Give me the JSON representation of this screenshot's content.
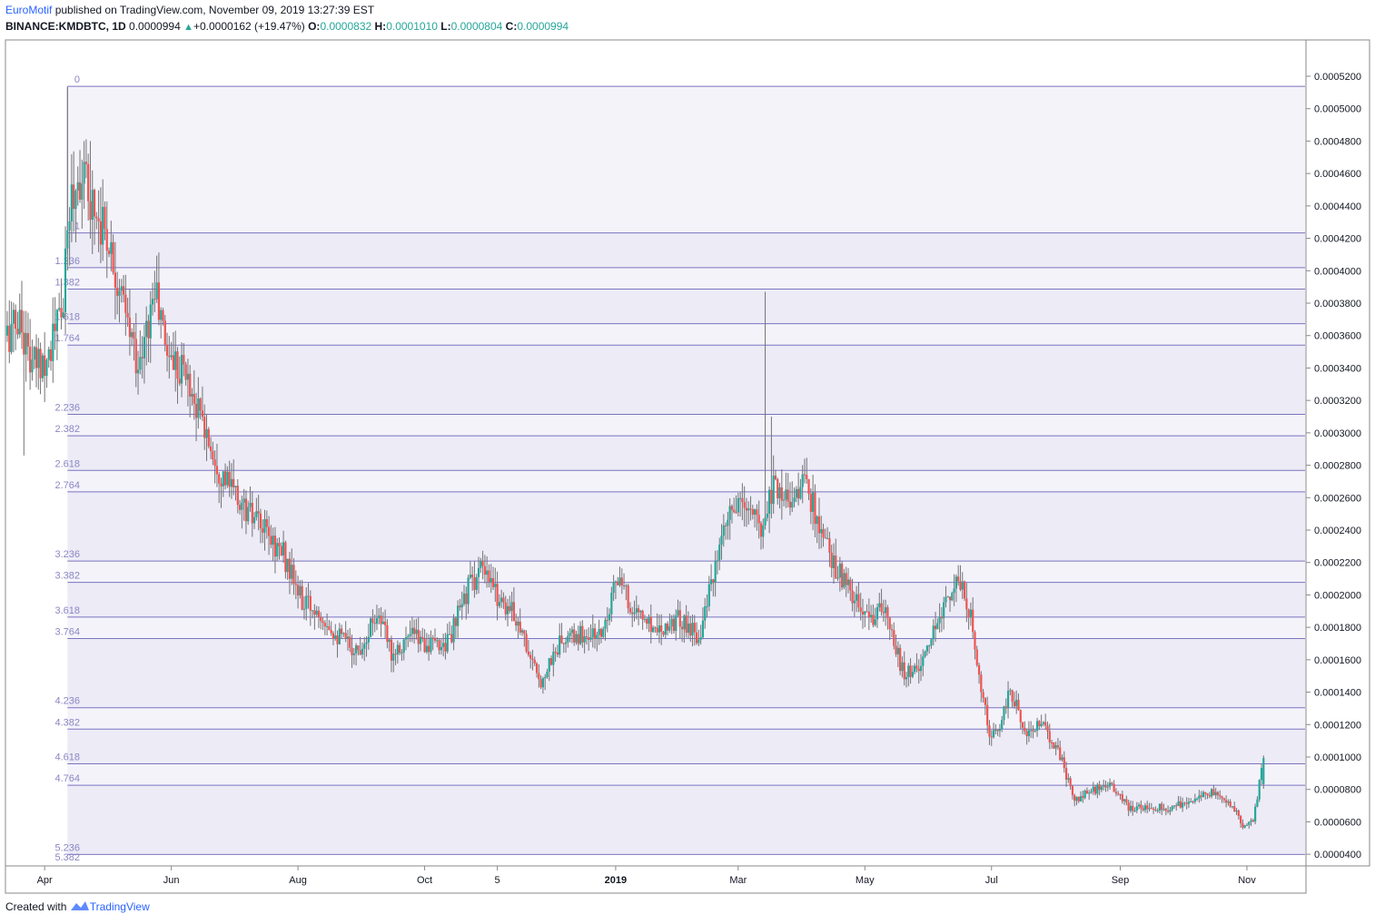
{
  "header": {
    "author": "EuroMotif",
    "published_text": "published on TradingView.com, November 09, 2019 13:27:39 EST",
    "symbol": "BINANCE:KMDBTC, 1D",
    "last": "0.0000994",
    "change": "+0.0000162 (+19.47%)",
    "open_label": "O:",
    "open": "0.0000832",
    "high_label": "H:",
    "high": "0.0001010",
    "low_label": "L:",
    "low": "0.0000804",
    "close_label": "C:",
    "close": "0.0000994"
  },
  "footer": {
    "created_with": "Created with",
    "brand": "TradingView"
  },
  "colors": {
    "up": "#26a69a",
    "down": "#ef5350",
    "fib_line": "#7b74bf",
    "fib_label": "#8b86c4",
    "fib_band": "#f4f3fa",
    "grid": "#c8c8c8"
  },
  "chart_data": {
    "type": "candlestick",
    "symbol": "BINANCE:KMDBTC",
    "interval": "1D",
    "ylim": [
      3.4e-05,
      0.00054
    ],
    "y_ticks": [
      {
        "label": "0.0005200",
        "value": 0.00052
      },
      {
        "label": "0.0005000",
        "value": 0.0005
      },
      {
        "label": "0.0004800",
        "value": 0.00048
      },
      {
        "label": "0.0004600",
        "value": 0.00046
      },
      {
        "label": "0.0004400",
        "value": 0.00044
      },
      {
        "label": "0.0004200",
        "value": 0.00042
      },
      {
        "label": "0.0004000",
        "value": 0.0004
      },
      {
        "label": "0.0003800",
        "value": 0.00038
      },
      {
        "label": "0.0003600",
        "value": 0.00036
      },
      {
        "label": "0.0003400",
        "value": 0.00034
      },
      {
        "label": "0.0003200",
        "value": 0.00032
      },
      {
        "label": "0.0003000",
        "value": 0.0003
      },
      {
        "label": "0.0002800",
        "value": 0.00028
      },
      {
        "label": "0.0002600",
        "value": 0.00026
      },
      {
        "label": "0.0002400",
        "value": 0.00024
      },
      {
        "label": "0.0002200",
        "value": 0.00022
      },
      {
        "label": "0.0002000",
        "value": 0.0002
      },
      {
        "label": "0.0001800",
        "value": 0.00018
      },
      {
        "label": "0.0001600",
        "value": 0.00016
      },
      {
        "label": "0.0001400",
        "value": 0.00014
      },
      {
        "label": "0.0001200",
        "value": 0.00012
      },
      {
        "label": "0.0001000",
        "value": 0.0001
      },
      {
        "label": "0.0000800",
        "value": 8e-05
      },
      {
        "label": "0.0000600",
        "value": 6e-05
      },
      {
        "label": "0.0000400",
        "value": 4e-05
      }
    ],
    "x_ticks": [
      {
        "label": "Apr",
        "date": "2018-04-01"
      },
      {
        "label": "Jun",
        "date": "2018-06-01"
      },
      {
        "label": "Aug",
        "date": "2018-08-01"
      },
      {
        "label": "Oct",
        "date": "2018-10-01"
      },
      {
        "label": "5",
        "date": "2018-11-05"
      },
      {
        "label": "2019",
        "date": "2019-01-01"
      },
      {
        "label": "Mar",
        "date": "2019-03-01"
      },
      {
        "label": "May",
        "date": "2019-05-01"
      },
      {
        "label": "Jul",
        "date": "2019-07-01"
      },
      {
        "label": "Sep",
        "date": "2019-09-01"
      },
      {
        "label": "Nov",
        "date": "2019-11-01"
      }
    ],
    "x_range": [
      "2018-03-14",
      "2019-11-29"
    ],
    "fib_extension": {
      "start_date": "2018-04-12",
      "end_date": "2019-11-29",
      "levels": [
        {
          "label": "0",
          "price": 0.0005138
        },
        {
          "label": "1",
          "price": 0.0004233
        },
        {
          "label": "1.236",
          "price": 0.0004019
        },
        {
          "label": "1.382",
          "price": 0.0003887
        },
        {
          "label": "1.618",
          "price": 0.0003673
        },
        {
          "label": "1.764",
          "price": 0.0003541
        },
        {
          "label": "2.236",
          "price": 0.0003114
        },
        {
          "label": "2.382",
          "price": 0.0002982
        },
        {
          "label": "2.618",
          "price": 0.0002768
        },
        {
          "label": "2.764",
          "price": 0.0002636
        },
        {
          "label": "3.236",
          "price": 0.0002209
        },
        {
          "label": "3.382",
          "price": 0.0002077
        },
        {
          "label": "3.618",
          "price": 0.0001863
        },
        {
          "label": "3.764",
          "price": 0.0001731
        },
        {
          "label": "4.236",
          "price": 0.0001304
        },
        {
          "label": "4.382",
          "price": 0.0001172
        },
        {
          "label": "4.618",
          "price": 9.58e-05
        },
        {
          "label": "4.764",
          "price": 8.26e-05
        },
        {
          "label": "5.236",
          "price": 3.99e-05
        },
        {
          "label": "5.382",
          "price": 2.67e-05
        }
      ]
    },
    "series_anchors": [
      {
        "date": "2018-03-14",
        "close": 0.00036
      },
      {
        "date": "2018-03-20",
        "close": 0.00037
      },
      {
        "date": "2018-03-26",
        "close": 0.00034
      },
      {
        "date": "2018-04-03",
        "close": 0.00035
      },
      {
        "date": "2018-04-10",
        "close": 0.00038
      },
      {
        "date": "2018-04-13",
        "close": 0.00044
      },
      {
        "date": "2018-04-18",
        "close": 0.00046
      },
      {
        "date": "2018-04-25",
        "close": 0.00044
      },
      {
        "date": "2018-05-02",
        "close": 0.00042
      },
      {
        "date": "2018-05-10",
        "close": 0.00037
      },
      {
        "date": "2018-05-17",
        "close": 0.00034
      },
      {
        "date": "2018-05-24",
        "close": 0.00039
      },
      {
        "date": "2018-05-30",
        "close": 0.00035
      },
      {
        "date": "2018-06-07",
        "close": 0.00034
      },
      {
        "date": "2018-06-15",
        "close": 0.00031
      },
      {
        "date": "2018-06-25",
        "close": 0.000275
      },
      {
        "date": "2018-07-05",
        "close": 0.000255
      },
      {
        "date": "2018-07-15",
        "close": 0.00024
      },
      {
        "date": "2018-07-25",
        "close": 0.000225
      },
      {
        "date": "2018-08-03",
        "close": 0.000195
      },
      {
        "date": "2018-08-12",
        "close": 0.00019
      },
      {
        "date": "2018-08-20",
        "close": 0.000175
      },
      {
        "date": "2018-08-30",
        "close": 0.000165
      },
      {
        "date": "2018-09-08",
        "close": 0.00019
      },
      {
        "date": "2018-09-15",
        "close": 0.000165
      },
      {
        "date": "2018-09-25",
        "close": 0.000175
      },
      {
        "date": "2018-10-05",
        "close": 0.000168
      },
      {
        "date": "2018-10-13",
        "close": 0.000172
      },
      {
        "date": "2018-10-22",
        "close": 0.000205
      },
      {
        "date": "2018-10-28",
        "close": 0.000215
      },
      {
        "date": "2018-11-05",
        "close": 0.0002
      },
      {
        "date": "2018-11-15",
        "close": 0.000185
      },
      {
        "date": "2018-11-25",
        "close": 0.000145
      },
      {
        "date": "2018-12-05",
        "close": 0.00017
      },
      {
        "date": "2018-12-15",
        "close": 0.000175
      },
      {
        "date": "2018-12-25",
        "close": 0.000175
      },
      {
        "date": "2019-01-01",
        "close": 0.00021
      },
      {
        "date": "2019-01-10",
        "close": 0.00019
      },
      {
        "date": "2019-01-20",
        "close": 0.00018
      },
      {
        "date": "2019-02-01",
        "close": 0.000185
      },
      {
        "date": "2019-02-10",
        "close": 0.000175
      },
      {
        "date": "2019-02-18",
        "close": 0.000215
      },
      {
        "date": "2019-02-25",
        "close": 0.00025
      },
      {
        "date": "2019-03-05",
        "close": 0.000255
      },
      {
        "date": "2019-03-12",
        "close": 0.00024
      },
      {
        "date": "2019-03-18",
        "close": 0.00027
      },
      {
        "date": "2019-03-25",
        "close": 0.00026
      },
      {
        "date": "2019-04-03",
        "close": 0.00027
      },
      {
        "date": "2019-04-10",
        "close": 0.000235
      },
      {
        "date": "2019-04-20",
        "close": 0.00021
      },
      {
        "date": "2019-05-01",
        "close": 0.000185
      },
      {
        "date": "2019-05-10",
        "close": 0.00019
      },
      {
        "date": "2019-05-20",
        "close": 0.00015
      },
      {
        "date": "2019-05-30",
        "close": 0.00016
      },
      {
        "date": "2019-06-08",
        "close": 0.000195
      },
      {
        "date": "2019-06-15",
        "close": 0.00021
      },
      {
        "date": "2019-06-22",
        "close": 0.00018
      },
      {
        "date": "2019-06-30",
        "close": 0.00011
      },
      {
        "date": "2019-07-05",
        "close": 0.00012
      },
      {
        "date": "2019-07-10",
        "close": 0.00014
      },
      {
        "date": "2019-07-18",
        "close": 0.000115
      },
      {
        "date": "2019-07-25",
        "close": 0.00012
      },
      {
        "date": "2019-08-02",
        "close": 0.000105
      },
      {
        "date": "2019-08-10",
        "close": 7.3e-05
      },
      {
        "date": "2019-08-20",
        "close": 8e-05
      },
      {
        "date": "2019-08-28",
        "close": 8.2e-05
      },
      {
        "date": "2019-09-05",
        "close": 6.8e-05
      },
      {
        "date": "2019-09-15",
        "close": 7e-05
      },
      {
        "date": "2019-09-25",
        "close": 6.8e-05
      },
      {
        "date": "2019-10-05",
        "close": 7.4e-05
      },
      {
        "date": "2019-10-15",
        "close": 7.8e-05
      },
      {
        "date": "2019-10-25",
        "close": 7e-05
      },
      {
        "date": "2019-10-30",
        "close": 5.8e-05
      },
      {
        "date": "2019-11-04",
        "close": 6.2e-05
      },
      {
        "date": "2019-11-07",
        "close": 8.3e-05
      },
      {
        "date": "2019-11-09",
        "close": 9.94e-05
      }
    ]
  }
}
